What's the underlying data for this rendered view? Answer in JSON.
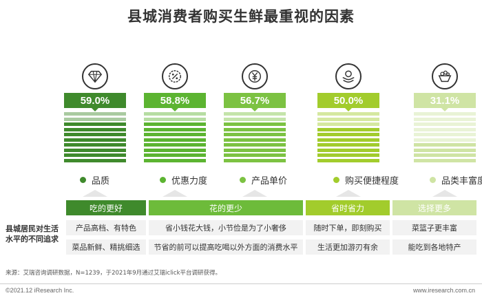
{
  "title": "县城消费者购买生鲜最重视的因素",
  "chart_data": {
    "type": "bar",
    "categories": [
      "品质",
      "优惠力度",
      "产品单价",
      "购买便捷程度",
      "品类丰富度"
    ],
    "values": [
      59.0,
      58.8,
      56.7,
      50.0,
      31.1
    ],
    "value_labels": [
      "59.0%",
      "58.8%",
      "56.7%",
      "50.0%",
      "31.1%"
    ],
    "unit": "%",
    "colors": [
      "#3f8a2c",
      "#5cb431",
      "#7cc242",
      "#a2cc2c",
      "#cfe4a4"
    ],
    "icons": [
      "diamond-icon",
      "discount-icon",
      "yuan-coin-icon",
      "hand-coin-icon",
      "variety-icon"
    ]
  },
  "table": {
    "row_header": "县城居民对生活水平的不同追求",
    "groups": [
      {
        "label": "吃的更好",
        "color": "#3f8a2c",
        "items": [
          "产品高档、有特色",
          "菜品新鲜、精挑细选"
        ]
      },
      {
        "label": "花的更少",
        "color": "#6dbb3a",
        "items": [
          "省小钱花大钱，小节俭是为了小奢侈",
          "节省的前可以提高吃喝以外方面的消费水平"
        ]
      },
      {
        "label": "省时省力",
        "color": "#a2cc2c",
        "items": [
          "随时下单，即刻购买",
          "生活更加游刃有余"
        ]
      },
      {
        "label": "选择更多",
        "color": "#cfe4a4",
        "items": [
          "菜篮子更丰富",
          "能吃到各地特产"
        ]
      }
    ]
  },
  "footer": {
    "source": "来源：艾瑞咨询调研数据，N=1239，于2021年9月通过艾瑞iclick平台调研获得。",
    "copyright": "©2021.12 iResearch Inc.",
    "website": "www.iresearch.com.cn"
  }
}
